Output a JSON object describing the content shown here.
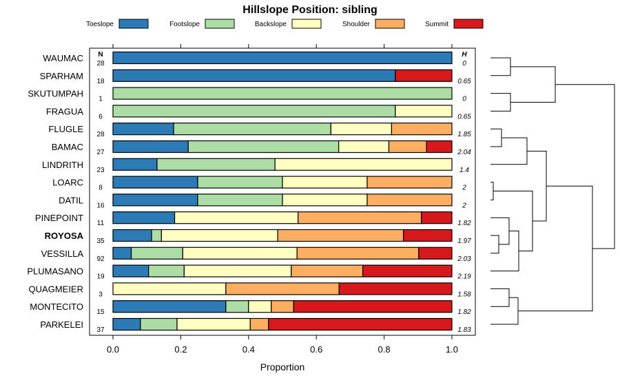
{
  "chart_data": {
    "type": "bar",
    "orientation": "horizontal-stacked",
    "title": "Hillslope Position: sibling",
    "xlabel": "Proportion",
    "xlim": [
      0,
      1
    ],
    "xticks": [
      "0.0",
      "0.2",
      "0.4",
      "0.6",
      "0.8",
      "1.0"
    ],
    "n_header": "N",
    "h_header": "H",
    "highlight": "ROYOSA",
    "series": [
      {
        "name": "Toeslope",
        "color": "#2c7bb6"
      },
      {
        "name": "Footslope",
        "color": "#abdda4"
      },
      {
        "name": "Backslope",
        "color": "#ffffbf"
      },
      {
        "name": "Shoulder",
        "color": "#fdae61"
      },
      {
        "name": "Summit",
        "color": "#d7191c"
      }
    ],
    "rows": [
      {
        "label": "WAUMAC",
        "n": "28",
        "h": "0",
        "values": [
          1.0,
          0,
          0,
          0,
          0
        ]
      },
      {
        "label": "SPARHAM",
        "n": "18",
        "h": "0.65",
        "values": [
          0.833,
          0,
          0,
          0,
          0.167
        ]
      },
      {
        "label": "SKUTUMPAH",
        "n": "1",
        "h": "0",
        "values": [
          0,
          1.0,
          0,
          0,
          0
        ]
      },
      {
        "label": "FRAGUA",
        "n": "6",
        "h": "0.65",
        "values": [
          0,
          0.833,
          0.167,
          0,
          0
        ]
      },
      {
        "label": "FLUGLE",
        "n": "28",
        "h": "1.85",
        "values": [
          0.179,
          0.464,
          0.179,
          0.178,
          0
        ]
      },
      {
        "label": "BAMAC",
        "n": "27",
        "h": "2.04",
        "values": [
          0.222,
          0.444,
          0.148,
          0.111,
          0.075
        ]
      },
      {
        "label": "LINDRITH",
        "n": "23",
        "h": "1.4",
        "values": [
          0.13,
          0.348,
          0.522,
          0,
          0
        ]
      },
      {
        "label": "LOARC",
        "n": "8",
        "h": "2",
        "values": [
          0.25,
          0.25,
          0.25,
          0.25,
          0
        ]
      },
      {
        "label": "DATIL",
        "n": "16",
        "h": "2",
        "values": [
          0.25,
          0.25,
          0.25,
          0.25,
          0
        ]
      },
      {
        "label": "PINEPOINT",
        "n": "11",
        "h": "1.82",
        "values": [
          0.182,
          0,
          0.364,
          0.364,
          0.09
        ]
      },
      {
        "label": "ROYOSA",
        "n": "35",
        "h": "1.97",
        "values": [
          0.114,
          0.029,
          0.343,
          0.371,
          0.143
        ]
      },
      {
        "label": "VESSILLA",
        "n": "92",
        "h": "2.03",
        "values": [
          0.054,
          0.152,
          0.337,
          0.359,
          0.098
        ]
      },
      {
        "label": "PLUMASANO",
        "n": "19",
        "h": "2.19",
        "values": [
          0.105,
          0.105,
          0.316,
          0.211,
          0.263
        ]
      },
      {
        "label": "QUAGMEIER",
        "n": "3",
        "h": "1.58",
        "values": [
          0,
          0,
          0.333,
          0.334,
          0.333
        ]
      },
      {
        "label": "MONTECITO",
        "n": "15",
        "h": "1.82",
        "values": [
          0.333,
          0.067,
          0.067,
          0.066,
          0.467
        ]
      },
      {
        "label": "PARKELEI",
        "n": "37",
        "h": "1.83",
        "values": [
          0.081,
          0.108,
          0.216,
          0.054,
          0.541
        ]
      }
    ]
  }
}
